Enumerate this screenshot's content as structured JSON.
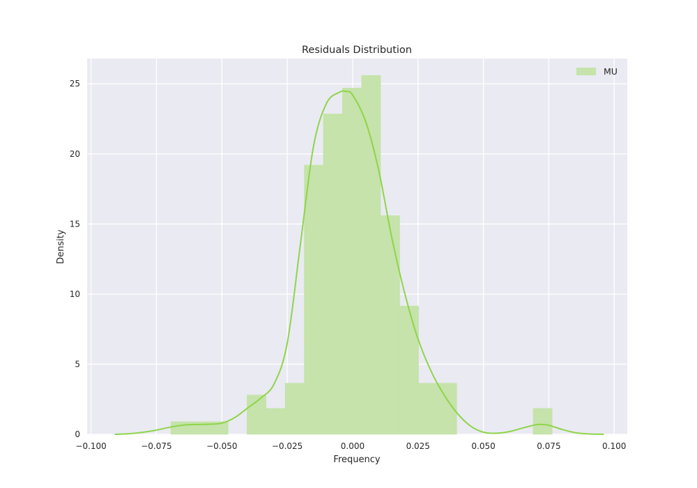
{
  "chart_data": {
    "type": "histogram",
    "title": "Residuals Distribution",
    "xlabel": "Frequency",
    "ylabel": "Density",
    "xlim": [
      -0.1015,
      0.105
    ],
    "ylim": [
      0,
      26.8
    ],
    "xticks": [
      -0.1,
      -0.075,
      -0.05,
      -0.025,
      0.0,
      0.025,
      0.05,
      0.075,
      0.1
    ],
    "xtick_labels": [
      "−0.100",
      "−0.075",
      "−0.050",
      "−0.025",
      "0.000",
      "0.025",
      "0.050",
      "0.075",
      "0.100"
    ],
    "yticks": [
      0,
      5,
      10,
      15,
      20,
      25
    ],
    "ytick_labels": [
      "0",
      "5",
      "10",
      "15",
      "20",
      "25"
    ],
    "grid": true,
    "legend": {
      "position": "top-right",
      "entries": [
        "MU"
      ]
    },
    "colors": {
      "bar": "#c5e3aa",
      "kde": "#8fd44b",
      "background": "#eaeaf2",
      "grid": "#ffffff"
    },
    "bins": {
      "edges": [
        -0.0695,
        -0.0622,
        -0.0549,
        -0.0476,
        -0.0404,
        -0.0331,
        -0.0258,
        -0.0185,
        -0.0112,
        -0.0039,
        0.0034,
        0.0107,
        0.018,
        0.0252,
        0.0325,
        0.0398,
        0.0471,
        0.0544,
        0.0617,
        0.069,
        0.0763
      ],
      "densities": [
        0.9,
        0.9,
        0.9,
        0,
        2.8,
        1.85,
        3.65,
        19.2,
        22.85,
        24.7,
        25.6,
        15.6,
        9.15,
        3.65,
        3.65,
        0,
        0,
        0,
        0,
        1.85
      ]
    },
    "series": [
      {
        "name": "MU",
        "kde_x": [
          -0.091,
          -0.085,
          -0.08,
          -0.075,
          -0.07,
          -0.065,
          -0.06,
          -0.055,
          -0.05,
          -0.045,
          -0.04,
          -0.035,
          -0.03,
          -0.025,
          -0.02,
          -0.015,
          -0.01,
          -0.005,
          -0.0025,
          0.0,
          0.005,
          0.01,
          0.015,
          0.02,
          0.025,
          0.03,
          0.035,
          0.04,
          0.045,
          0.05,
          0.055,
          0.06,
          0.065,
          0.07,
          0.0725,
          0.075,
          0.08,
          0.085,
          0.09,
          0.096
        ],
        "kde_y": [
          0.0,
          0.05,
          0.15,
          0.3,
          0.5,
          0.65,
          0.7,
          0.72,
          0.8,
          1.2,
          1.9,
          2.6,
          3.6,
          6.5,
          13.5,
          20.5,
          23.6,
          24.4,
          24.45,
          24.2,
          22.3,
          18.8,
          14.0,
          10.0,
          6.8,
          4.5,
          2.8,
          1.5,
          0.6,
          0.15,
          0.08,
          0.2,
          0.45,
          0.68,
          0.7,
          0.65,
          0.35,
          0.12,
          0.03,
          0.0
        ]
      }
    ]
  }
}
